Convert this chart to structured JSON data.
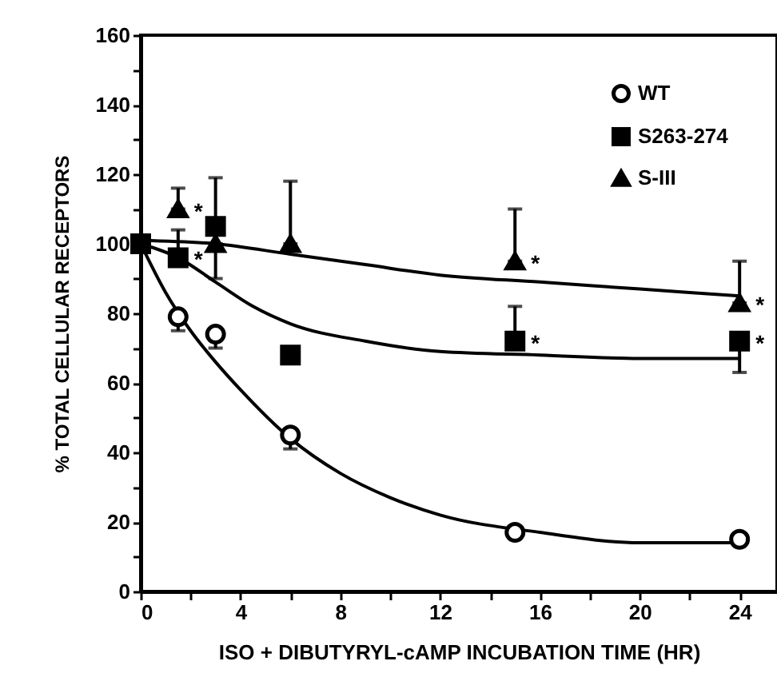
{
  "chart_data": {
    "type": "scatter",
    "xlabel": "ISO + DIBUTYRYL-cAMP INCUBATION TIME (HR)",
    "ylabel": "% TOTAL CELLULAR RECEPTORS",
    "xlim": [
      0,
      25.5
    ],
    "ylim": [
      0,
      160
    ],
    "xticks": [
      0,
      {
        "value": 2,
        "label": null
      },
      4,
      {
        "value": 6,
        "label": null
      },
      8,
      {
        "value": 10,
        "label": null
      },
      12,
      {
        "value": 14,
        "label": null
      },
      16,
      {
        "value": 18,
        "label": null
      },
      20,
      {
        "value": 22,
        "label": null
      },
      24
    ],
    "yticks": [
      0,
      {
        "value": 10,
        "label": null
      },
      20,
      {
        "value": 30,
        "label": null
      },
      40,
      {
        "value": 50,
        "label": null
      },
      60,
      {
        "value": 70,
        "label": null
      },
      80,
      {
        "value": 90,
        "label": null
      },
      100,
      {
        "value": 110,
        "label": null
      },
      120,
      {
        "value": 130,
        "label": null
      },
      140,
      {
        "value": 150,
        "label": null
      },
      160
    ],
    "grid": false,
    "legend": "top right",
    "series": [
      {
        "name": "WT",
        "marker": "circle",
        "color": "#000000",
        "x": [
          1.5,
          3,
          6,
          15,
          24
        ],
        "values": [
          79,
          74,
          45,
          17,
          15
        ],
        "errors": [
          [
            75,
            79
          ],
          [
            70,
            74
          ],
          [
            41,
            45
          ],
          null,
          null
        ]
      },
      {
        "name": "S263-274",
        "marker": "square",
        "color": "#000000",
        "x": [
          0,
          1.5,
          3,
          6,
          15,
          24
        ],
        "values": [
          100,
          96,
          105,
          68,
          72,
          72
        ],
        "errors": [
          null,
          [
            96,
            104
          ],
          [
            105,
            119
          ],
          null,
          [
            72,
            82
          ],
          [
            63,
            72
          ]
        ]
      },
      {
        "name": "S-III",
        "marker": "triangle",
        "color": "#000000",
        "x": [
          1.5,
          3,
          6,
          15,
          24
        ],
        "values": [
          110,
          100,
          100,
          95,
          83
        ],
        "errors": [
          [
            110,
            116
          ],
          [
            90,
            100
          ],
          [
            100,
            118
          ],
          [
            95,
            110
          ],
          [
            83,
            95
          ]
        ]
      },
      {
        "type": "line",
        "line_style": "solid",
        "color": "#000000",
        "x": [
          0,
          1,
          2,
          3,
          4,
          6,
          8,
          10,
          12,
          16,
          20,
          24
        ],
        "values": [
          100,
          86,
          75,
          66,
          58,
          44,
          34,
          27,
          22,
          17,
          14,
          14
        ]
      },
      {
        "type": "line",
        "line_style": "solid",
        "color": "#000000",
        "x": [
          0,
          1.5,
          3,
          4.5,
          6,
          9,
          12,
          16,
          20,
          24
        ],
        "values": [
          100,
          96,
          89,
          82,
          77,
          72,
          69,
          68,
          67,
          67
        ]
      },
      {
        "type": "line",
        "line_style": "solid",
        "color": "#000000",
        "x": [
          0,
          3,
          6,
          9,
          12,
          16,
          20,
          24
        ],
        "values": [
          101,
          100,
          97,
          94,
          91,
          89,
          87,
          85
        ]
      }
    ],
    "annotations": [
      {
        "text": "*",
        "x": 1.5,
        "y": 110
      },
      {
        "text": "*",
        "x": 1.5,
        "y": 96
      },
      {
        "text": "*",
        "x": 15,
        "y": 95
      },
      {
        "text": "*",
        "x": 15,
        "y": 72
      },
      {
        "text": "*",
        "x": 24,
        "y": 83
      },
      {
        "text": "*",
        "x": 24,
        "y": 72
      }
    ]
  }
}
